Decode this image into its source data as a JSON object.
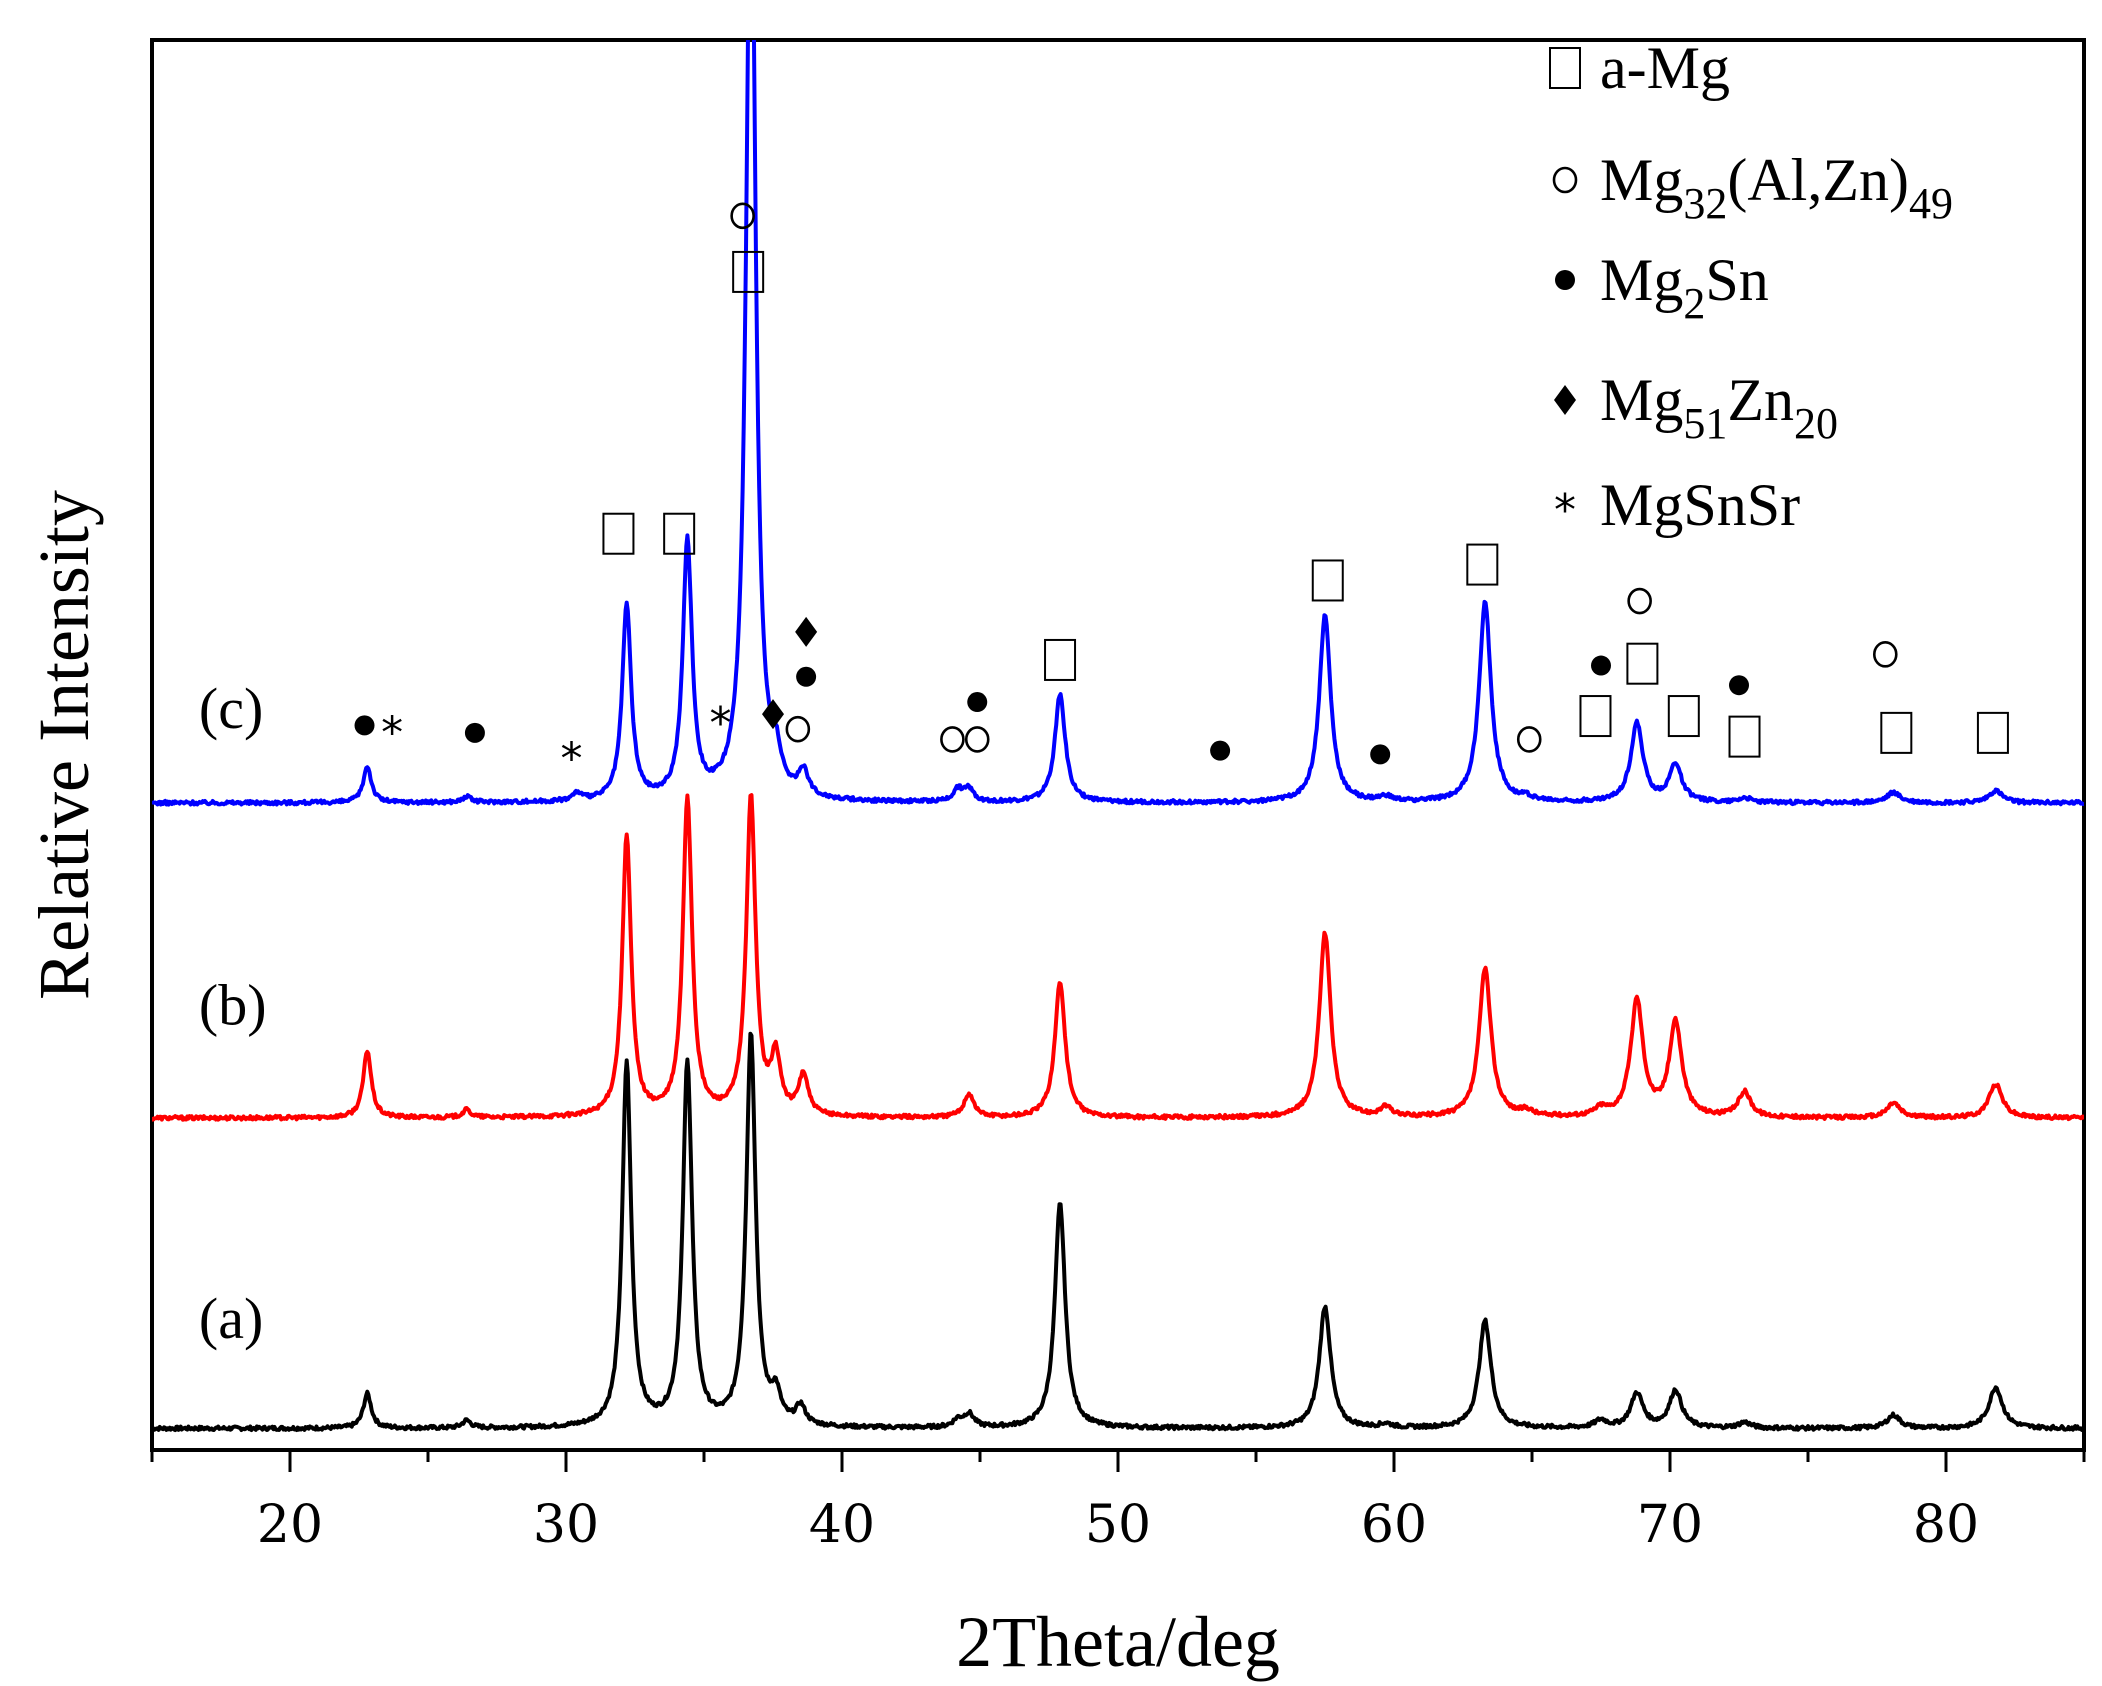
{
  "chart_data": {
    "type": "line",
    "title": "",
    "xlabel": "2Theta/deg",
    "ylabel": "Relative Intensity",
    "xlim": [
      15,
      85
    ],
    "ylim": [
      0,
      1000
    ],
    "xticks": [
      20,
      30,
      40,
      50,
      60,
      70,
      80
    ],
    "grid": false,
    "legend_position": "top-right",
    "series": [
      {
        "name": "(a)",
        "color": "#000000",
        "baseline": 8,
        "peaks": [
          {
            "x": 22.8,
            "h": 37
          },
          {
            "x": 26.4,
            "h": 8
          },
          {
            "x": 32.2,
            "h": 390
          },
          {
            "x": 34.4,
            "h": 390
          },
          {
            "x": 36.7,
            "h": 420
          },
          {
            "x": 37.6,
            "h": 30
          },
          {
            "x": 38.5,
            "h": 20
          },
          {
            "x": 44.2,
            "h": 8
          },
          {
            "x": 44.6,
            "h": 14
          },
          {
            "x": 47.9,
            "h": 240
          },
          {
            "x": 57.5,
            "h": 130
          },
          {
            "x": 59.7,
            "h": 4
          },
          {
            "x": 63.3,
            "h": 115
          },
          {
            "x": 67.5,
            "h": 8
          },
          {
            "x": 68.8,
            "h": 37
          },
          {
            "x": 70.2,
            "h": 40
          },
          {
            "x": 72.7,
            "h": 6
          },
          {
            "x": 78.1,
            "h": 14
          },
          {
            "x": 81.8,
            "h": 44
          }
        ]
      },
      {
        "name": "(b)",
        "color": "#ff0000",
        "baseline": 340,
        "peaks": [
          {
            "x": 22.8,
            "h": 72
          },
          {
            "x": 26.4,
            "h": 8
          },
          {
            "x": 32.2,
            "h": 300
          },
          {
            "x": 34.4,
            "h": 340
          },
          {
            "x": 36.7,
            "h": 340
          },
          {
            "x": 37.6,
            "h": 60
          },
          {
            "x": 38.6,
            "h": 43
          },
          {
            "x": 44.6,
            "h": 25
          },
          {
            "x": 47.9,
            "h": 145
          },
          {
            "x": 57.5,
            "h": 197
          },
          {
            "x": 59.7,
            "h": 10
          },
          {
            "x": 63.3,
            "h": 160
          },
          {
            "x": 64.8,
            "h": 6
          },
          {
            "x": 67.5,
            "h": 8
          },
          {
            "x": 68.8,
            "h": 125
          },
          {
            "x": 70.2,
            "h": 101
          },
          {
            "x": 72.7,
            "h": 27
          },
          {
            "x": 78.1,
            "h": 16
          },
          {
            "x": 81.8,
            "h": 36
          }
        ]
      },
      {
        "name": "(c)",
        "color": "#0000ff",
        "baseline": 677,
        "peaks": [
          {
            "x": 22.8,
            "h": 39
          },
          {
            "x": 26.4,
            "h": 6
          },
          {
            "x": 30.4,
            "h": 8
          },
          {
            "x": 32.2,
            "h": 210
          },
          {
            "x": 34.4,
            "h": 275
          },
          {
            "x": 36.7,
            "h": 1050
          },
          {
            "x": 37.6,
            "h": 32
          },
          {
            "x": 38.6,
            "h": 27
          },
          {
            "x": 44.2,
            "h": 13
          },
          {
            "x": 44.6,
            "h": 13
          },
          {
            "x": 47.9,
            "h": 116
          },
          {
            "x": 57.5,
            "h": 200
          },
          {
            "x": 59.7,
            "h": 5
          },
          {
            "x": 63.3,
            "h": 215
          },
          {
            "x": 64.8,
            "h": 4
          },
          {
            "x": 68.8,
            "h": 84
          },
          {
            "x": 70.2,
            "h": 40
          },
          {
            "x": 72.7,
            "h": 5
          },
          {
            "x": 78.1,
            "h": 11
          },
          {
            "x": 81.8,
            "h": 13
          }
        ]
      }
    ],
    "series_labels": [
      {
        "text": "(a)",
        "x": 16.7,
        "y": 105
      },
      {
        "text": "(b)",
        "x": 16.7,
        "y": 440
      },
      {
        "text": "(c)",
        "x": 16.7,
        "y": 757
      }
    ],
    "legend": [
      {
        "symbol": "□",
        "parts": [
          {
            "text": "a-Mg"
          }
        ]
      },
      {
        "symbol": "o",
        "parts": [
          {
            "text": "Mg"
          },
          {
            "text": "32",
            "sub": true
          },
          {
            "text": "(Al,Zn)"
          },
          {
            "text": "49",
            "sub": true
          }
        ]
      },
      {
        "symbol": "●",
        "parts": [
          {
            "text": "Mg"
          },
          {
            "text": "2",
            "sub": true
          },
          {
            "text": "Sn"
          }
        ]
      },
      {
        "symbol": "◆",
        "parts": [
          {
            "text": "Mg"
          },
          {
            "text": "51",
            "sub": true
          },
          {
            "text": "Zn"
          },
          {
            "text": "20",
            "sub": true
          }
        ]
      },
      {
        "symbol": "*",
        "parts": [
          {
            "text": "MgSnSr"
          }
        ]
      }
    ],
    "annotations": [
      {
        "symbol": "●",
        "x": 22.7,
        "y": 760
      },
      {
        "symbol": "*",
        "x": 23.7,
        "y": 758
      },
      {
        "symbol": "●",
        "x": 26.7,
        "y": 752
      },
      {
        "symbol": "*",
        "x": 30.2,
        "y": 730
      },
      {
        "symbol": "□",
        "x": 31.9,
        "y": 965
      },
      {
        "symbol": "□",
        "x": 34.1,
        "y": 965
      },
      {
        "symbol": "*",
        "x": 35.6,
        "y": 768
      },
      {
        "symbol": "◆",
        "x": 37.5,
        "y": 772
      },
      {
        "symbol": "o",
        "x": 38.4,
        "y": 756
      },
      {
        "symbol": "◆",
        "x": 38.7,
        "y": 860
      },
      {
        "symbol": "●",
        "x": 38.7,
        "y": 812
      },
      {
        "symbol": "o",
        "x": 36.4,
        "y": 1305
      },
      {
        "symbol": "□",
        "x": 36.6,
        "y": 1245
      },
      {
        "symbol": "o",
        "x": 44.0,
        "y": 745
      },
      {
        "symbol": "o",
        "x": 44.9,
        "y": 745
      },
      {
        "symbol": "●",
        "x": 44.9,
        "y": 785
      },
      {
        "symbol": "□",
        "x": 47.9,
        "y": 830
      },
      {
        "symbol": "●",
        "x": 53.7,
        "y": 733
      },
      {
        "symbol": "□",
        "x": 57.6,
        "y": 915
      },
      {
        "symbol": "●",
        "x": 59.5,
        "y": 729
      },
      {
        "symbol": "o",
        "x": 64.9,
        "y": 745
      },
      {
        "symbol": "□",
        "x": 63.2,
        "y": 932
      },
      {
        "symbol": "●",
        "x": 67.5,
        "y": 824
      },
      {
        "symbol": "□",
        "x": 67.3,
        "y": 770
      },
      {
        "symbol": "o",
        "x": 68.9,
        "y": 893
      },
      {
        "symbol": "□",
        "x": 69.0,
        "y": 826
      },
      {
        "symbol": "□",
        "x": 70.5,
        "y": 770
      },
      {
        "symbol": "●",
        "x": 72.5,
        "y": 803
      },
      {
        "symbol": "□",
        "x": 72.7,
        "y": 748
      },
      {
        "symbol": "o",
        "x": 77.8,
        "y": 836
      },
      {
        "symbol": "□",
        "x": 78.2,
        "y": 752
      },
      {
        "symbol": "□",
        "x": 81.7,
        "y": 752
      }
    ]
  }
}
